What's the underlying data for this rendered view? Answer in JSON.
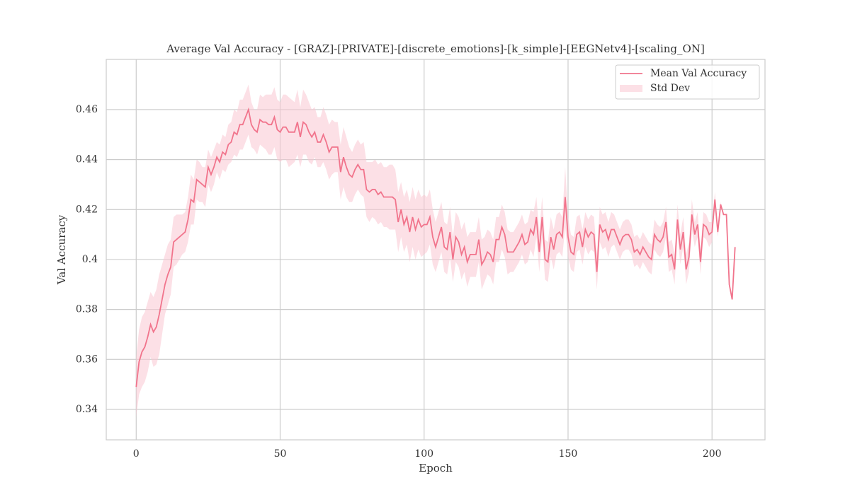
{
  "chart_data": {
    "type": "line",
    "title": "Average Val Accuracy - [GRAZ]-[PRIVATE]-[discrete_emotions]-[k_simple]-[EEGNetv4]-[scaling_ON]",
    "xlabel": "Epoch",
    "ylabel": "Val Accuracy",
    "x": [
      0,
      1,
      2,
      3,
      4,
      5,
      6,
      7,
      8,
      9,
      10,
      11,
      12,
      13,
      14,
      15,
      16,
      17,
      18,
      19,
      20,
      21,
      22,
      23,
      24,
      25,
      26,
      27,
      28,
      29,
      30,
      31,
      32,
      33,
      34,
      35,
      36,
      37,
      38,
      39,
      40,
      41,
      42,
      43,
      44,
      45,
      46,
      47,
      48,
      49,
      50,
      51,
      52,
      53,
      54,
      55,
      56,
      57,
      58,
      59,
      60,
      61,
      62,
      63,
      64,
      65,
      66,
      67,
      68,
      69,
      70,
      71,
      72,
      73,
      74,
      75,
      76,
      77,
      78,
      79,
      80,
      81,
      82,
      83,
      84,
      85,
      86,
      87,
      88,
      89,
      90,
      91,
      92,
      93,
      94,
      95,
      96,
      97,
      98,
      99,
      100,
      101,
      102,
      103,
      104,
      105,
      106,
      107,
      108,
      109,
      110,
      111,
      112,
      113,
      114,
      115,
      116,
      117,
      118,
      119,
      120,
      121,
      122,
      123,
      124,
      125,
      126,
      127,
      128,
      129,
      130,
      131,
      132,
      133,
      134,
      135,
      136,
      137,
      138,
      139,
      140,
      141,
      142,
      143,
      144,
      145,
      146,
      147,
      148,
      149,
      150,
      151,
      152,
      153,
      154,
      155,
      156,
      157,
      158,
      159,
      160,
      161,
      162,
      163,
      164,
      165,
      166,
      167,
      168,
      169,
      170,
      171,
      172,
      173,
      174,
      175,
      176,
      177,
      178,
      179,
      180,
      181,
      182,
      183,
      184,
      185,
      186,
      187,
      188,
      189,
      190,
      191,
      192,
      193,
      194,
      195,
      196,
      197,
      198,
      199,
      200,
      201,
      202,
      203,
      204,
      205,
      206,
      207,
      208
    ],
    "series": [
      {
        "name": "Mean Val Accuracy",
        "color": "#f1748c",
        "values": [
          0.349,
          0.359,
          0.363,
          0.365,
          0.369,
          0.374,
          0.371,
          0.373,
          0.378,
          0.384,
          0.39,
          0.394,
          0.397,
          0.407,
          0.408,
          0.409,
          0.41,
          0.411,
          0.416,
          0.424,
          0.423,
          0.432,
          0.431,
          0.43,
          0.429,
          0.437,
          0.434,
          0.437,
          0.441,
          0.439,
          0.443,
          0.442,
          0.446,
          0.447,
          0.451,
          0.45,
          0.454,
          0.454,
          0.457,
          0.46,
          0.454,
          0.452,
          0.451,
          0.456,
          0.455,
          0.455,
          0.454,
          0.454,
          0.457,
          0.452,
          0.451,
          0.453,
          0.453,
          0.451,
          0.451,
          0.451,
          0.455,
          0.449,
          0.455,
          0.454,
          0.451,
          0.449,
          0.451,
          0.447,
          0.447,
          0.45,
          0.447,
          0.443,
          0.445,
          0.445,
          0.445,
          0.435,
          0.441,
          0.437,
          0.434,
          0.433,
          0.436,
          0.438,
          0.436,
          0.436,
          0.428,
          0.427,
          0.428,
          0.428,
          0.426,
          0.427,
          0.425,
          0.425,
          0.425,
          0.425,
          0.424,
          0.415,
          0.42,
          0.414,
          0.417,
          0.411,
          0.417,
          0.412,
          0.416,
          0.413,
          0.414,
          0.414,
          0.417,
          0.409,
          0.405,
          0.409,
          0.413,
          0.405,
          0.404,
          0.411,
          0.4,
          0.409,
          0.407,
          0.402,
          0.405,
          0.399,
          0.402,
          0.402,
          0.402,
          0.408,
          0.398,
          0.4,
          0.403,
          0.402,
          0.399,
          0.408,
          0.408,
          0.413,
          0.41,
          0.403,
          0.403,
          0.403,
          0.405,
          0.407,
          0.41,
          0.406,
          0.407,
          0.412,
          0.41,
          0.417,
          0.403,
          0.417,
          0.4,
          0.399,
          0.409,
          0.404,
          0.41,
          0.411,
          0.409,
          0.425,
          0.409,
          0.403,
          0.402,
          0.41,
          0.411,
          0.405,
          0.412,
          0.409,
          0.411,
          0.41,
          0.395,
          0.414,
          0.411,
          0.412,
          0.408,
          0.412,
          0.412,
          0.409,
          0.406,
          0.409,
          0.41,
          0.41,
          0.408,
          0.403,
          0.404,
          0.402,
          0.405,
          0.403,
          0.401,
          0.4,
          0.41,
          0.408,
          0.407,
          0.409,
          0.415,
          0.401,
          0.402,
          0.396,
          0.416,
          0.404,
          0.411,
          0.396,
          0.401,
          0.418,
          0.41,
          0.414,
          0.399,
          0.414,
          0.413,
          0.41,
          0.411,
          0.424,
          0.411,
          0.422,
          0.418,
          0.418,
          0.39,
          0.384,
          0.405
        ]
      }
    ],
    "std_band": {
      "name": "Std Dev",
      "color": "#f9c6d1",
      "values": [
        0.012,
        0.013,
        0.014,
        0.014,
        0.014,
        0.013,
        0.014,
        0.015,
        0.016,
        0.014,
        0.012,
        0.012,
        0.011,
        0.01,
        0.01,
        0.009,
        0.008,
        0.008,
        0.009,
        0.01,
        0.009,
        0.008,
        0.008,
        0.007,
        0.008,
        0.007,
        0.007,
        0.007,
        0.006,
        0.007,
        0.007,
        0.007,
        0.008,
        0.008,
        0.009,
        0.009,
        0.01,
        0.01,
        0.01,
        0.01,
        0.009,
        0.008,
        0.009,
        0.01,
        0.01,
        0.011,
        0.012,
        0.012,
        0.012,
        0.012,
        0.012,
        0.013,
        0.013,
        0.014,
        0.013,
        0.012,
        0.013,
        0.012,
        0.013,
        0.012,
        0.012,
        0.011,
        0.01,
        0.01,
        0.01,
        0.011,
        0.011,
        0.011,
        0.011,
        0.01,
        0.01,
        0.011,
        0.012,
        0.012,
        0.011,
        0.01,
        0.01,
        0.01,
        0.01,
        0.011,
        0.011,
        0.012,
        0.011,
        0.012,
        0.012,
        0.012,
        0.012,
        0.012,
        0.013,
        0.013,
        0.012,
        0.012,
        0.011,
        0.011,
        0.011,
        0.012,
        0.012,
        0.012,
        0.012,
        0.012,
        0.012,
        0.011,
        0.011,
        0.011,
        0.01,
        0.01,
        0.01,
        0.01,
        0.01,
        0.01,
        0.009,
        0.01,
        0.01,
        0.01,
        0.01,
        0.01,
        0.009,
        0.009,
        0.009,
        0.009,
        0.01,
        0.009,
        0.009,
        0.009,
        0.009,
        0.009,
        0.009,
        0.009,
        0.009,
        0.009,
        0.008,
        0.008,
        0.008,
        0.008,
        0.008,
        0.008,
        0.008,
        0.008,
        0.009,
        0.008,
        0.008,
        0.008,
        0.008,
        0.008,
        0.008,
        0.008,
        0.008,
        0.008,
        0.008,
        0.012,
        0.008,
        0.007,
        0.007,
        0.007,
        0.007,
        0.007,
        0.007,
        0.007,
        0.007,
        0.007,
        0.007,
        0.007,
        0.007,
        0.007,
        0.007,
        0.007,
        0.006,
        0.006,
        0.006,
        0.006,
        0.006,
        0.006,
        0.006,
        0.006,
        0.006,
        0.006,
        0.006,
        0.006,
        0.006,
        0.006,
        0.006,
        0.006,
        0.006,
        0.006,
        0.006,
        0.006,
        0.006,
        0.006,
        0.006,
        0.006,
        0.006,
        0.006,
        0.006,
        0.006,
        0.005,
        0.005,
        0.005,
        0.005,
        0.005,
        0.005,
        0.004,
        0.003,
        0.002,
        0.001,
        0,
        0,
        0,
        0,
        0
      ]
    },
    "xlim": [
      -10.4,
      218.4
    ],
    "ylim": [
      0.3278,
      0.4801
    ],
    "xticks": [
      0,
      50,
      100,
      150,
      200
    ],
    "yticks": [
      0.34,
      0.36,
      0.38,
      0.4,
      0.42,
      0.44,
      0.46
    ],
    "grid": true,
    "legend": "upper right"
  }
}
